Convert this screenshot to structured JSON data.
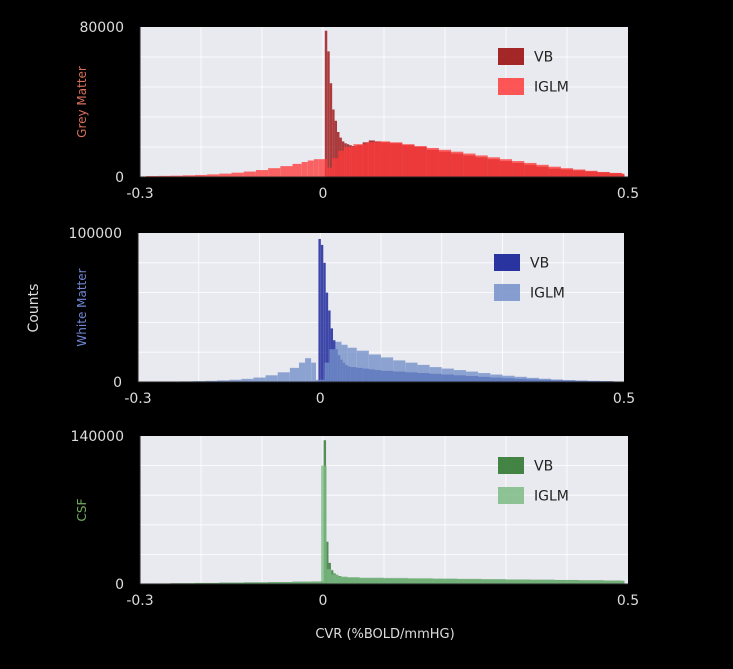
{
  "figure": {
    "ylabel": "Counts",
    "xlabel": "CVR (%BOLD/mmHG)"
  },
  "chart_data": [
    {
      "type": "histogram",
      "panel": "Grey Matter",
      "ylabel": "Grey Matter",
      "ylabel_color": "#d9705a",
      "x_ticks": [
        "-0.3",
        "0",
        "0.5"
      ],
      "x_tick_values": [
        -0.3,
        0,
        0.5
      ],
      "xlim": [
        -0.3,
        0.5
      ],
      "y_ticks": [
        "0",
        "80000"
      ],
      "y_tick_values": [
        0,
        80000
      ],
      "ylim": [
        0,
        80000
      ],
      "legend_position": "top-right",
      "series": [
        {
          "name": "VB",
          "color": "#a01c1c",
          "x": [
            0.003,
            0.007,
            0.011,
            0.015,
            0.019,
            0.023,
            0.027,
            0.031,
            0.035,
            0.039,
            0.043,
            0.047,
            0.055,
            0.065,
            0.075,
            0.085,
            0.095,
            0.11,
            0.13,
            0.15,
            0.17,
            0.19,
            0.21,
            0.23,
            0.25,
            0.27,
            0.29,
            0.31,
            0.33,
            0.35,
            0.37,
            0.39,
            0.41,
            0.43,
            0.45,
            0.47,
            0.49
          ],
          "values": [
            78000,
            67000,
            50000,
            36000,
            30000,
            24000,
            21000,
            19000,
            18000,
            17500,
            17000,
            16500,
            17000,
            18500,
            19500,
            19000,
            18500,
            18000,
            17000,
            16000,
            14500,
            13500,
            12500,
            11500,
            10500,
            9500,
            8500,
            7500,
            6500,
            5500,
            4500,
            4000,
            3500,
            3000,
            2500,
            2000,
            1500
          ]
        },
        {
          "name": "IGLM",
          "color": "#ff3b3b",
          "x": [
            -0.29,
            -0.27,
            -0.25,
            -0.23,
            -0.21,
            -0.19,
            -0.17,
            -0.15,
            -0.13,
            -0.11,
            -0.09,
            -0.07,
            -0.05,
            -0.035,
            -0.025,
            -0.015,
            -0.007,
            0.007,
            0.015,
            0.025,
            0.035,
            0.05,
            0.07,
            0.09,
            0.11,
            0.13,
            0.15,
            0.17,
            0.19,
            0.21,
            0.23,
            0.25,
            0.27,
            0.29,
            0.31,
            0.33,
            0.35,
            0.37,
            0.39,
            0.41,
            0.43,
            0.45,
            0.47,
            0.49
          ],
          "values": [
            500,
            600,
            700,
            900,
            1100,
            1400,
            1800,
            2300,
            2900,
            3700,
            4700,
            5800,
            7000,
            8000,
            8800,
            9500,
            9500,
            5000,
            10000,
            14000,
            16000,
            17500,
            18500,
            19000,
            18500,
            17500,
            16500,
            15500,
            14500,
            13500,
            12500,
            11500,
            10500,
            9500,
            8500,
            7500,
            6500,
            5500,
            4700,
            4000,
            3300,
            2700,
            2200,
            1800
          ]
        }
      ]
    },
    {
      "type": "histogram",
      "panel": "White Matter",
      "ylabel": "White Matter",
      "ylabel_color": "#6f86d6",
      "x_ticks": [
        "-0.3",
        "0",
        "0.5"
      ],
      "x_tick_values": [
        -0.3,
        0,
        0.5
      ],
      "xlim": [
        -0.3,
        0.5
      ],
      "y_ticks": [
        "0",
        "100000"
      ],
      "y_tick_values": [
        0,
        100000
      ],
      "ylim": [
        0,
        100000
      ],
      "legend_position": "top-right",
      "series": [
        {
          "name": "VB",
          "color": "#1f2a9c",
          "x": [
            -0.003,
            0.001,
            0.005,
            0.009,
            0.013,
            0.017,
            0.021,
            0.025,
            0.029,
            0.033,
            0.037,
            0.041,
            0.045,
            0.05,
            0.06,
            0.07,
            0.08,
            0.09,
            0.1,
            0.12,
            0.14,
            0.16,
            0.18,
            0.2,
            0.22,
            0.24,
            0.26,
            0.28,
            0.3,
            0.32,
            0.34,
            0.36,
            0.38,
            0.4,
            0.42,
            0.44,
            0.46,
            0.48
          ],
          "values": [
            96000,
            92000,
            80000,
            60000,
            48000,
            36000,
            28000,
            22000,
            18000,
            15000,
            13000,
            11500,
            10500,
            10000,
            9500,
            9000,
            8500,
            8000,
            7500,
            7000,
            6500,
            6000,
            5500,
            5000,
            4500,
            4000,
            3500,
            3000,
            2600,
            2200,
            1800,
            1500,
            1200,
            1000,
            800,
            600,
            500,
            400
          ]
        },
        {
          "name": "IGLM",
          "color": "#7390c9",
          "x": [
            -0.25,
            -0.23,
            -0.21,
            -0.19,
            -0.17,
            -0.15,
            -0.13,
            -0.11,
            -0.09,
            -0.07,
            -0.05,
            -0.035,
            -0.025,
            -0.015,
            -0.007,
            0.007,
            0.015,
            0.025,
            0.035,
            0.045,
            0.06,
            0.08,
            0.1,
            0.12,
            0.14,
            0.16,
            0.18,
            0.2,
            0.22,
            0.24,
            0.26,
            0.28,
            0.3,
            0.32,
            0.34,
            0.36,
            0.38,
            0.4,
            0.42,
            0.44,
            0.46,
            0.48
          ],
          "values": [
            300,
            400,
            600,
            800,
            1100,
            1500,
            2100,
            3000,
            4500,
            6500,
            9500,
            13000,
            16000,
            13000,
            1500,
            13000,
            22000,
            27000,
            25000,
            23000,
            21000,
            18500,
            16500,
            14500,
            13000,
            11500,
            10000,
            9000,
            8000,
            7000,
            6000,
            5000,
            4200,
            3500,
            2800,
            2200,
            1700,
            1300,
            1000,
            800,
            600,
            500
          ]
        }
      ]
    },
    {
      "type": "histogram",
      "panel": "CSF",
      "ylabel": "CSF",
      "ylabel_color": "#6fae5a",
      "x_ticks": [
        "-0.3",
        "0",
        "0.5"
      ],
      "x_tick_values": [
        -0.3,
        0,
        0.5
      ],
      "xlim": [
        -0.3,
        0.5
      ],
      "y_ticks": [
        "0",
        "140000"
      ],
      "y_tick_values": [
        0,
        140000
      ],
      "ylim": [
        0,
        140000
      ],
      "legend_position": "top-right",
      "series": [
        {
          "name": "VB",
          "color": "#3a7d3a",
          "x": [
            -0.29,
            -0.25,
            -0.21,
            -0.17,
            -0.13,
            -0.09,
            -0.05,
            -0.02,
            0.001,
            0.005,
            0.009,
            0.013,
            0.017,
            0.021,
            0.025,
            0.03,
            0.04,
            0.06,
            0.1,
            0.14,
            0.18,
            0.22,
            0.26,
            0.3,
            0.34,
            0.38,
            0.42,
            0.46,
            0.49
          ],
          "values": [
            500,
            700,
            1000,
            1300,
            1600,
            1900,
            2200,
            2400,
            136000,
            40000,
            20000,
            13000,
            10000,
            8500,
            7500,
            6500,
            6000,
            5500,
            5200,
            5000,
            4800,
            4600,
            4400,
            4200,
            4000,
            3800,
            3500,
            3200,
            3000
          ]
        },
        {
          "name": "IGLM",
          "color": "#7dbb84",
          "x": [
            -0.29,
            -0.25,
            -0.21,
            -0.17,
            -0.13,
            -0.09,
            -0.05,
            -0.02,
            -0.003,
            0.006,
            0.014,
            0.025,
            0.04,
            0.06,
            0.1,
            0.14,
            0.18,
            0.22,
            0.26,
            0.3,
            0.34,
            0.38,
            0.42,
            0.46,
            0.49
          ],
          "values": [
            400,
            600,
            900,
            1200,
            1500,
            1800,
            2100,
            2300,
            112000,
            14000,
            9000,
            7000,
            6500,
            6000,
            5800,
            5500,
            5200,
            4900,
            4600,
            4300,
            4000,
            3700,
            3400,
            3100,
            2900
          ]
        }
      ]
    }
  ]
}
